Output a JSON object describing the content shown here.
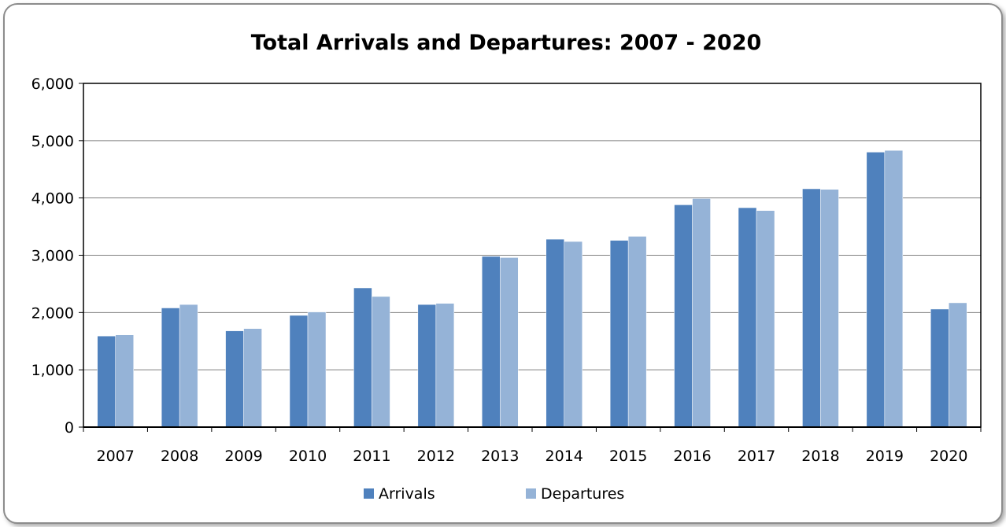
{
  "chart_data": {
    "type": "bar",
    "title": "Total Arrivals and Departures: 2007 - 2020",
    "xlabel": "",
    "ylabel": "",
    "categories": [
      "2007",
      "2008",
      "2009",
      "2010",
      "2011",
      "2012",
      "2013",
      "2014",
      "2015",
      "2016",
      "2017",
      "2018",
      "2019",
      "2020"
    ],
    "series": [
      {
        "name": "Arrivals",
        "color": "#4f81bd",
        "values": [
          1590,
          2080,
          1680,
          1950,
          2430,
          2140,
          2980,
          3280,
          3260,
          3880,
          3830,
          4160,
          4800,
          2060
        ]
      },
      {
        "name": "Departures",
        "color": "#95b3d7",
        "values": [
          1610,
          2140,
          1720,
          2010,
          2280,
          2160,
          2960,
          3240,
          3330,
          3990,
          3780,
          4150,
          4830,
          2170
        ]
      }
    ],
    "ylim": [
      0,
      6000
    ],
    "yticks": [
      0,
      1000,
      2000,
      3000,
      4000,
      5000,
      6000
    ],
    "ytick_labels": [
      "0",
      "1,000",
      "2,000",
      "3,000",
      "4,000",
      "5,000",
      "6,000"
    ],
    "grid": true,
    "legend_position": "bottom"
  }
}
